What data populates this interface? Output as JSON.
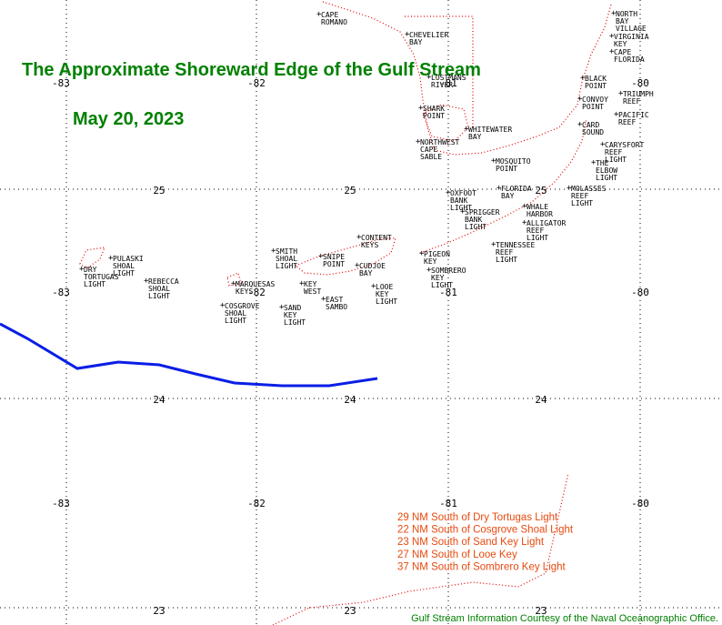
{
  "title": "The Approximate Shoreward Edge of the Gulf Stream",
  "date": "May 20, 2023",
  "grid": {
    "longitudes": [
      "-83",
      "-82",
      "-81",
      "-80"
    ],
    "latitudes": [
      "25",
      "24",
      "23"
    ]
  },
  "places": [
    {
      "lines": [
        "CAPE",
        "ROMANO"
      ]
    },
    {
      "lines": [
        "CHEVELIER",
        "BAY"
      ]
    },
    {
      "lines": [
        "NORTH",
        "BAY",
        "VILLAGE"
      ]
    },
    {
      "lines": [
        "VIRGINIA",
        "KEY"
      ]
    },
    {
      "lines": [
        "CAPE",
        "FLORIDA"
      ]
    },
    {
      "lines": [
        "LOSTMANS",
        "RIVER"
      ]
    },
    {
      "lines": [
        "BLACK",
        "POINT"
      ]
    },
    {
      "lines": [
        "TRIUMPH",
        "REEF"
      ]
    },
    {
      "lines": [
        "CONVOY",
        "POINT"
      ]
    },
    {
      "lines": [
        "SHARK",
        "POINT"
      ]
    },
    {
      "lines": [
        "PACIFIC",
        "REEF"
      ]
    },
    {
      "lines": [
        "WHITEWATER",
        "BAY"
      ]
    },
    {
      "lines": [
        "CARD",
        "SOUND"
      ]
    },
    {
      "lines": [
        "NORTHWEST",
        "CAPE",
        "SABLE"
      ]
    },
    {
      "lines": [
        "CARYSFORT",
        "REEF",
        "LIGHT"
      ]
    },
    {
      "lines": [
        "MOSQUITO",
        "POINT"
      ]
    },
    {
      "lines": [
        "THE",
        "ELBOW",
        "LIGHT"
      ]
    },
    {
      "lines": [
        "FLORIDA",
        "BAY"
      ]
    },
    {
      "lines": [
        "MOLASSES",
        "REEF",
        "LIGHT"
      ]
    },
    {
      "lines": [
        "OXFOOT",
        "BANK",
        "LIGHT"
      ]
    },
    {
      "lines": [
        "WHALE",
        "HARBOR"
      ]
    },
    {
      "lines": [
        "SPRIGGER",
        "BANK",
        "LIGHT"
      ]
    },
    {
      "lines": [
        "ALLIGATOR",
        "REEF",
        "LIGHT"
      ]
    },
    {
      "lines": [
        "CONTENT",
        "KEYS"
      ]
    },
    {
      "lines": [
        "TENNESSEE",
        "REEF",
        "LIGHT"
      ]
    },
    {
      "lines": [
        "SMITH",
        "SHOAL",
        "LIGHT"
      ]
    },
    {
      "lines": [
        "PIGEON",
        "KEY"
      ]
    },
    {
      "lines": [
        "PULASKI",
        "SHOAL",
        "LIGHT"
      ]
    },
    {
      "lines": [
        "SNIPE",
        "POINT"
      ]
    },
    {
      "lines": [
        "CUDJOE",
        "BAY"
      ]
    },
    {
      "lines": [
        "DRY",
        "TORTUGAS",
        "LIGHT"
      ]
    },
    {
      "lines": [
        "SOMBRERO",
        "KEY",
        "LIGHT"
      ]
    },
    {
      "lines": [
        "REBECCA",
        "SHOAL",
        "LIGHT"
      ]
    },
    {
      "lines": [
        "MARQUESAS",
        "KEYS"
      ]
    },
    {
      "lines": [
        "KEY",
        "WEST"
      ]
    },
    {
      "lines": [
        "LOOE",
        "KEY",
        "LIGHT"
      ]
    },
    {
      "lines": [
        "EAST",
        "SAMBO"
      ]
    },
    {
      "lines": [
        "COSGROVE",
        "SHOAL",
        "LIGHT"
      ]
    },
    {
      "lines": [
        "SAND",
        "KEY",
        "LIGHT"
      ]
    }
  ],
  "distances": [
    "29 NM South of Dry Tortugas Light",
    "22 NM South of Cosgrove Shoal Light",
    "23 NM South of Sand Key Light",
    "27 NM South of Looe Key",
    "37 NM South of Sombrero Key Light"
  ],
  "credit": "Gulf Stream Information Courtesy of the Naval Oceanographic Office."
}
